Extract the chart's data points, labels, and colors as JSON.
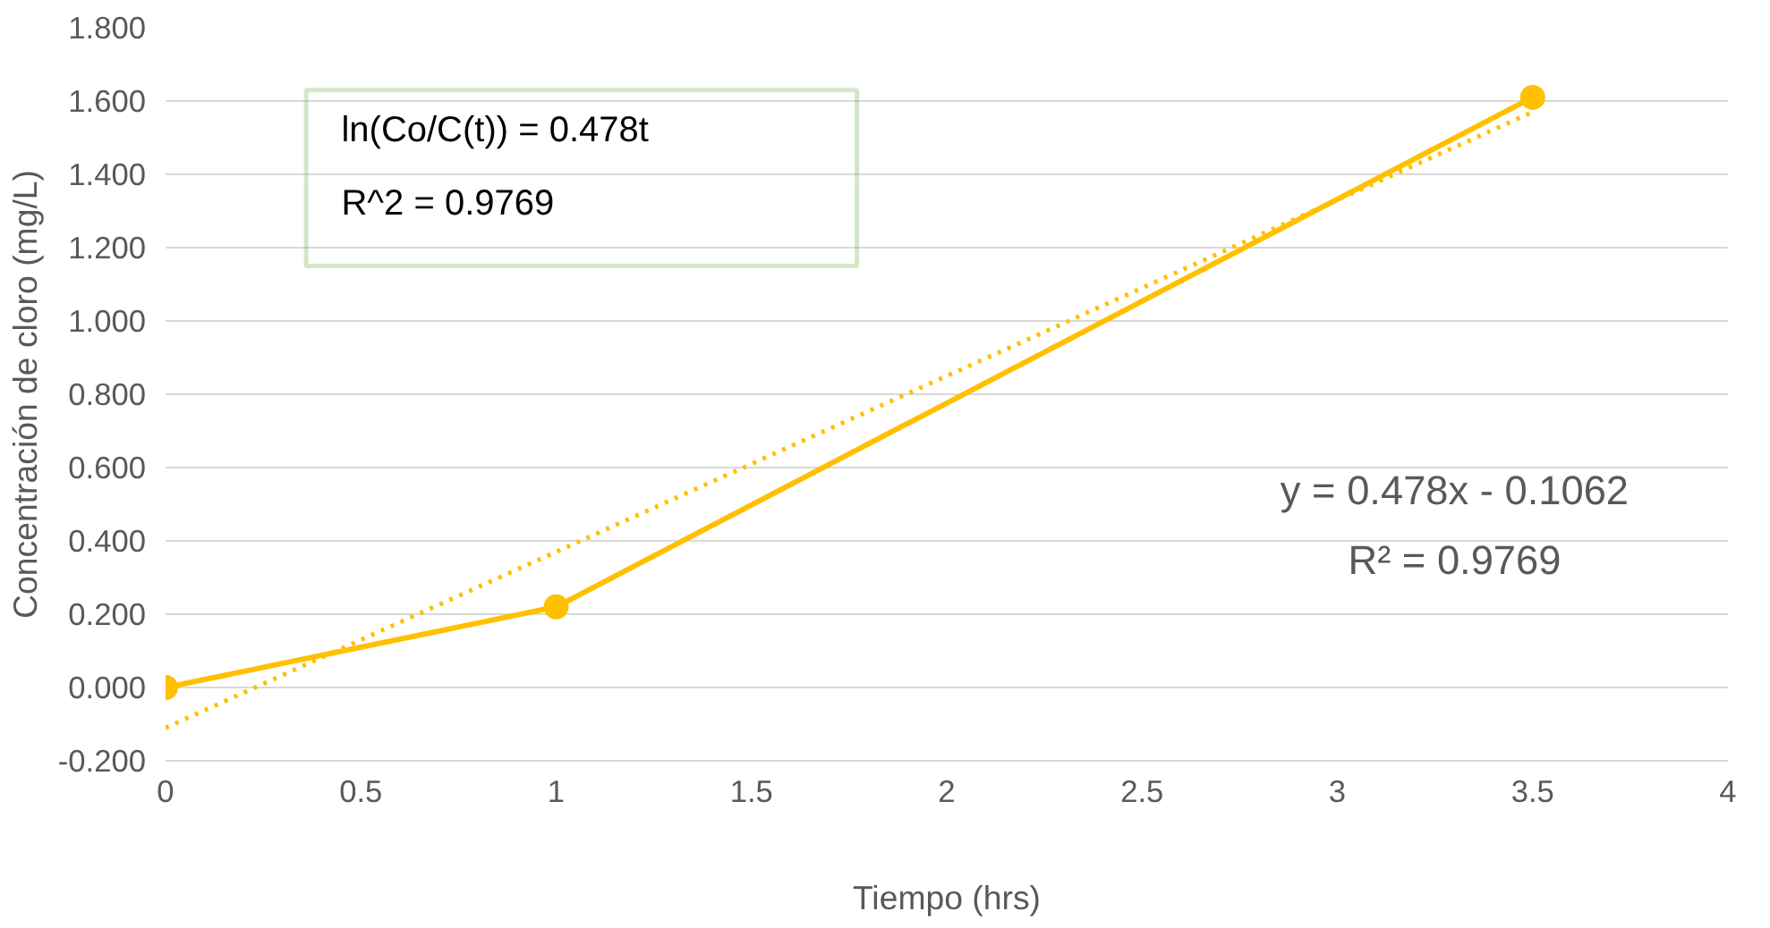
{
  "chart_data": {
    "type": "line",
    "xlabel": "Tiempo (hrs)",
    "ylabel": "Concentración de cloro (mg/L)",
    "xlim": [
      0,
      4
    ],
    "xticks": [
      0,
      0.5,
      1,
      1.5,
      2,
      2.5,
      3,
      3.5,
      4
    ],
    "ylim": [
      -0.2,
      1.8
    ],
    "yticks": [
      {
        "value": -0.2,
        "label": "-0.200"
      },
      {
        "value": 0,
        "label": "0.000"
      },
      {
        "value": 0.2,
        "label": "0.200"
      },
      {
        "value": 0.4,
        "label": "0.400"
      },
      {
        "value": 0.6,
        "label": "0.600"
      },
      {
        "value": 0.8,
        "label": "0.800"
      },
      {
        "value": 1.0,
        "label": "1.000"
      },
      {
        "value": 1.2,
        "label": "1.200"
      },
      {
        "value": 1.4,
        "label": "1.400"
      },
      {
        "value": 1.6,
        "label": "1.600"
      },
      {
        "value": 1.8,
        "label": "1.800"
      }
    ],
    "grid": "y",
    "series": [
      {
        "color": "#ffc000",
        "x": [
          0,
          1,
          3.5
        ],
        "values": [
          0,
          0.22,
          1.61
        ],
        "marker": "circle",
        "line_style": "solid"
      },
      {
        "color": "#ffc000",
        "x": [
          0,
          3.5
        ],
        "values": [
          -0.11,
          1.57
        ],
        "marker": "none",
        "line_style": "dotted"
      }
    ],
    "annotations": [
      "ln(Co/C(t)) = 0.478t\nR^2 = 0.9769",
      "y = 0.478x - 0.1062\nR² = 0.9769"
    ]
  }
}
